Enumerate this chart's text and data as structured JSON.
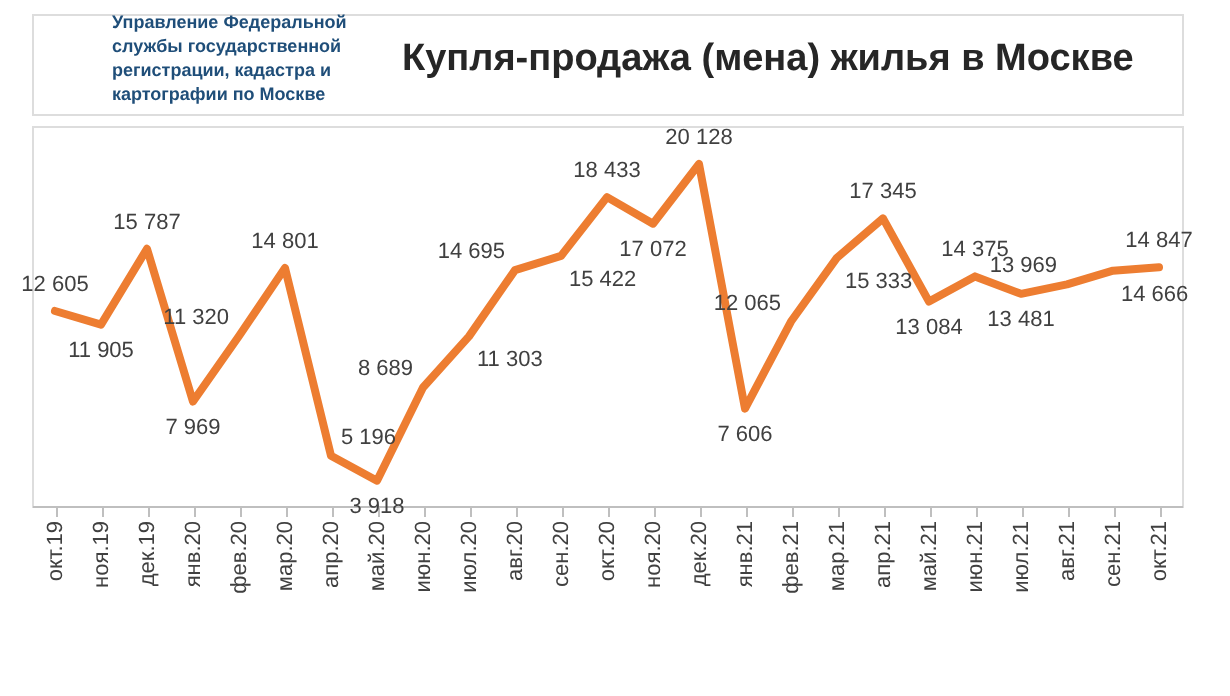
{
  "chart_data": {
    "type": "line",
    "title": "Купля-продажа (мена) жилья в Москве",
    "annotations": [
      "Управление Федеральной службы государственной регистрации, кадастра и картографии по Москве"
    ],
    "categories": [
      "окт.19",
      "ноя.19",
      "дек.19",
      "янв.20",
      "фев.20",
      "мар.20",
      "апр.20",
      "май.20",
      "июн.20",
      "июл.20",
      "авг.20",
      "сен.20",
      "окт.20",
      "ноя.20",
      "дек.20",
      "янв.21",
      "фев.21",
      "мар.21",
      "апр.21",
      "май.21",
      "июн.21",
      "июл.21",
      "авг.21",
      "сен.21",
      "окт.21"
    ],
    "series": [
      {
        "color": "#ed7d31",
        "values": [
          12605,
          11905,
          15787,
          7969,
          11320,
          14801,
          5196,
          3918,
          8689,
          11303,
          14695,
          15422,
          18433,
          17072,
          20128,
          7606,
          12065,
          15333,
          17345,
          13084,
          14375,
          13481,
          13969,
          14666,
          14847
        ]
      }
    ],
    "data_labels": true,
    "grid": false
  }
}
